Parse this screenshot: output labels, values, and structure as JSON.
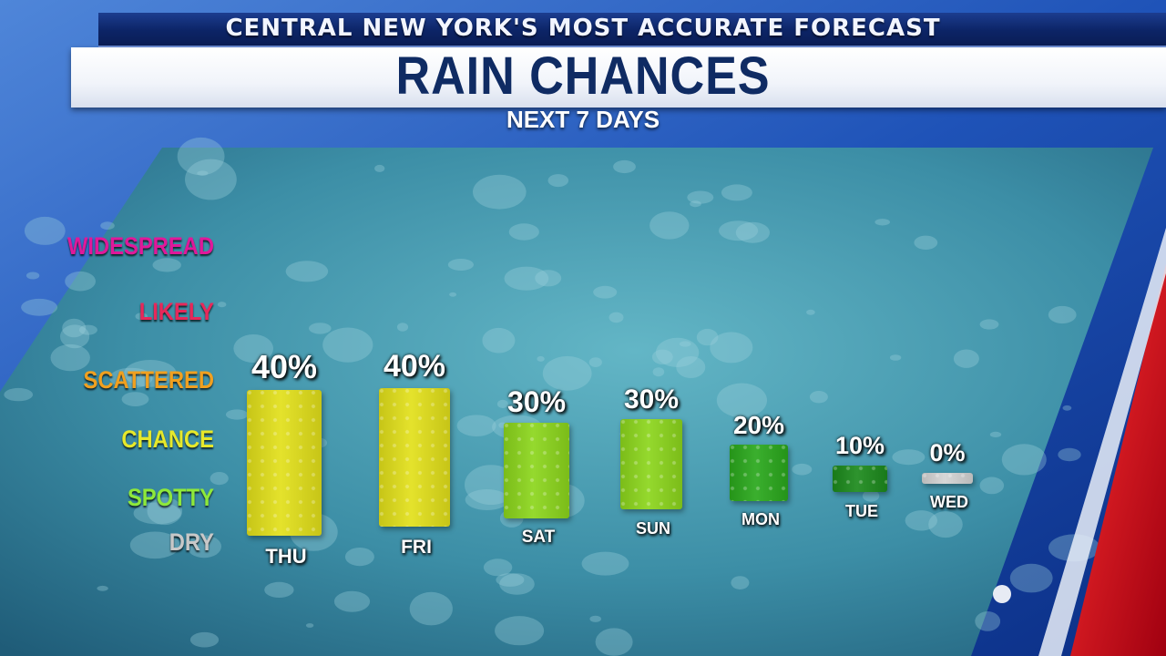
{
  "header": {
    "brand": "CENTRAL NEW YORK'S MOST ACCURATE FORECAST",
    "title": "RAIN CHANCES",
    "subtitle": "NEXT 7 DAYS"
  },
  "scale": {
    "levels": [
      {
        "label": "WIDESPREAD",
        "color": "#e0189a"
      },
      {
        "label": "LIKELY",
        "color": "#e8285a"
      },
      {
        "label": "SCATTERED",
        "color": "#f0a020"
      },
      {
        "label": "CHANCE",
        "color": "#e6e82a"
      },
      {
        "label": "SPOTTY",
        "color": "#8ee83a"
      },
      {
        "label": "DRY",
        "color": "#c8c8c8"
      }
    ]
  },
  "colors": {
    "brand_bar": "#0c2466",
    "title_text": "#0f2b63",
    "accent_red": "#d01020",
    "bar_40": "#e2e01a",
    "bar_30": "#8cd61c",
    "bar_20": "#2aa81c",
    "bar_10": "#1c8a1c",
    "bar_0": "#d4d4d4"
  },
  "chart_data": {
    "type": "bar",
    "title": "RAIN CHANCES",
    "subtitle": "NEXT 7 DAYS",
    "categories": [
      "THU",
      "FRI",
      "SAT",
      "SUN",
      "MON",
      "TUE",
      "WED"
    ],
    "values": [
      40,
      40,
      30,
      30,
      20,
      10,
      0
    ],
    "value_labels": [
      "40%",
      "40%",
      "30%",
      "30%",
      "20%",
      "10%",
      "0%"
    ],
    "unit": "%",
    "ylim": [
      0,
      100
    ],
    "y_categories": [
      "DRY",
      "SPOTTY",
      "CHANCE",
      "SCATTERED",
      "LIKELY",
      "WIDESPREAD"
    ],
    "bar_colors": [
      "#e2e01a",
      "#e2e01a",
      "#8cd61c",
      "#8cd61c",
      "#2aa81c",
      "#1c8a1c",
      "#d4d4d4"
    ],
    "grid": false,
    "legend": "none"
  }
}
